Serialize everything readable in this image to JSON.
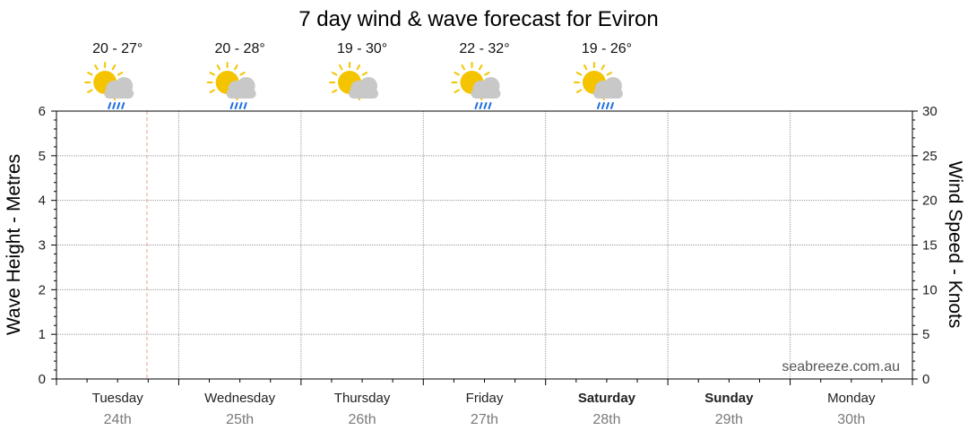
{
  "chart_data": {
    "type": "line",
    "title": "7 day wind & wave forecast for Eviron",
    "ylabel_left": "Wave Height - Metres",
    "ylabel_right": "Wind Speed - Knots",
    "ylim_left": [
      0,
      6
    ],
    "ylim_right": [
      0,
      30
    ],
    "left_ticks": [
      "0",
      "1",
      "2",
      "3",
      "4",
      "5",
      "6"
    ],
    "right_ticks": [
      "0",
      "5",
      "10",
      "15",
      "20",
      "25",
      "30"
    ],
    "days": [
      {
        "name": "Tuesday",
        "date": "24th",
        "bold": false
      },
      {
        "name": "Wednesday",
        "date": "25th",
        "bold": false
      },
      {
        "name": "Thursday",
        "date": "26th",
        "bold": false
      },
      {
        "name": "Friday",
        "date": "27th",
        "bold": false
      },
      {
        "name": "Saturday",
        "date": "28th",
        "bold": true
      },
      {
        "name": "Sunday",
        "date": "29th",
        "bold": true
      },
      {
        "name": "Monday",
        "date": "30th",
        "bold": false
      }
    ],
    "forecasts": [
      {
        "temp": "20 - 27°",
        "icon": "partly-cloudy-showers-icon",
        "rain": true
      },
      {
        "temp": "20 - 28°",
        "icon": "partly-cloudy-showers-icon",
        "rain": true
      },
      {
        "temp": "19 - 30°",
        "icon": "partly-cloudy-icon",
        "rain": false
      },
      {
        "temp": "22 - 32°",
        "icon": "partly-cloudy-showers-icon",
        "rain": true
      },
      {
        "temp": "19 - 26°",
        "icon": "partly-cloudy-showers-icon",
        "rain": true
      }
    ],
    "current_time_day_fraction": 0.74,
    "grid": true,
    "series": [],
    "watermark": "seabreeze.com.au"
  },
  "colors": {
    "grid": "#9a9a9a",
    "now_line": "#e8a090",
    "sun": "#f5c400",
    "cloud": "#c8c8c8",
    "rain": "#1f6fe0"
  }
}
